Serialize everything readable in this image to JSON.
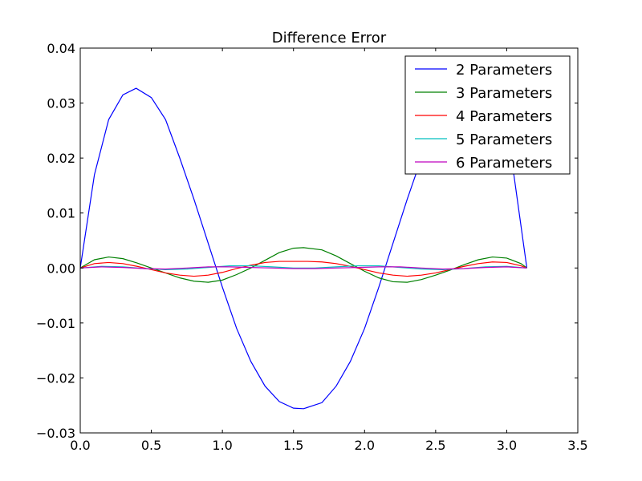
{
  "chart_data": {
    "type": "line",
    "title": "Difference Error",
    "xlabel": "",
    "ylabel": "",
    "xlim": [
      0.0,
      3.5
    ],
    "ylim": [
      -0.03,
      0.04
    ],
    "xticks": [
      "0.0",
      "0.5",
      "1.0",
      "1.5",
      "2.0",
      "2.5",
      "3.0",
      "3.5"
    ],
    "yticks": [
      "0.04",
      "0.03",
      "0.02",
      "0.01",
      "0.00",
      "−0.01",
      "−0.02",
      "−0.03"
    ],
    "legend_position": "upper-right",
    "grid": false,
    "series": [
      {
        "name": "2 Parameters",
        "color": "#0000ff",
        "x": [
          0.0,
          0.1,
          0.2,
          0.3,
          0.393,
          0.5,
          0.6,
          0.7,
          0.8,
          0.9,
          1.0,
          1.1,
          1.2,
          1.3,
          1.4,
          1.5,
          1.571,
          1.7,
          1.8,
          1.9,
          2.0,
          2.1,
          2.2,
          2.3,
          2.4,
          2.5,
          2.6,
          2.7,
          2.749,
          2.85,
          2.95,
          3.05,
          3.1416
        ],
        "y": [
          0.0,
          0.017,
          0.027,
          0.0315,
          0.0327,
          0.031,
          0.027,
          0.02,
          0.0125,
          0.0045,
          -0.0035,
          -0.011,
          -0.017,
          -0.0215,
          -0.0243,
          -0.0255,
          -0.0256,
          -0.0245,
          -0.0215,
          -0.017,
          -0.011,
          -0.0035,
          0.0045,
          0.0125,
          0.02,
          0.027,
          0.031,
          0.0327,
          0.0327,
          0.0315,
          0.027,
          0.017,
          0.0
        ]
      },
      {
        "name": "3 Parameters",
        "color": "#008000",
        "x": [
          0.0,
          0.1,
          0.2,
          0.3,
          0.4,
          0.5,
          0.6,
          0.7,
          0.8,
          0.9,
          1.0,
          1.1,
          1.2,
          1.3,
          1.4,
          1.5,
          1.571,
          1.7,
          1.8,
          1.9,
          2.0,
          2.1,
          2.2,
          2.3,
          2.4,
          2.5,
          2.6,
          2.7,
          2.8,
          2.9,
          3.0,
          3.1,
          3.1416
        ],
        "y": [
          0.0,
          0.0015,
          0.002,
          0.0017,
          0.0009,
          0.0,
          -0.0009,
          -0.0018,
          -0.0024,
          -0.0026,
          -0.0022,
          -0.0012,
          0.0,
          0.0014,
          0.0028,
          0.0036,
          0.0037,
          0.0033,
          0.0022,
          0.0008,
          -0.0006,
          -0.0018,
          -0.0025,
          -0.0026,
          -0.0021,
          -0.0013,
          -0.0004,
          0.0006,
          0.0015,
          0.002,
          0.0018,
          0.0008,
          0.0
        ]
      },
      {
        "name": "4 Parameters",
        "color": "#ff0000",
        "x": [
          0.0,
          0.1,
          0.2,
          0.3,
          0.4,
          0.5,
          0.6,
          0.7,
          0.8,
          0.9,
          1.0,
          1.1,
          1.2,
          1.3,
          1.4,
          1.5,
          1.6,
          1.7,
          1.8,
          1.9,
          2.0,
          2.1,
          2.2,
          2.3,
          2.4,
          2.5,
          2.6,
          2.7,
          2.8,
          2.9,
          3.0,
          3.1,
          3.1416
        ],
        "y": [
          0.0,
          0.0008,
          0.001,
          0.0008,
          0.0003,
          -0.0003,
          -0.0009,
          -0.0013,
          -0.0015,
          -0.0013,
          -0.0008,
          -0.0001,
          0.0005,
          0.001,
          0.0012,
          0.0012,
          0.0012,
          0.0011,
          0.0008,
          0.0003,
          -0.0003,
          -0.0009,
          -0.0013,
          -0.0015,
          -0.0013,
          -0.0009,
          -0.0003,
          0.0003,
          0.0008,
          0.0011,
          0.001,
          0.0004,
          0.0
        ]
      },
      {
        "name": "5 Parameters",
        "color": "#00bfbf",
        "x": [
          0.0,
          0.15,
          0.3,
          0.45,
          0.6,
          0.75,
          0.9,
          1.05,
          1.2,
          1.35,
          1.5,
          1.65,
          1.8,
          1.95,
          2.1,
          2.25,
          2.4,
          2.55,
          2.7,
          2.85,
          3.0,
          3.1416
        ],
        "y": [
          0.0,
          0.0003,
          0.0002,
          -0.0001,
          -0.0003,
          -0.0002,
          0.0001,
          0.0004,
          0.0004,
          0.0002,
          0.0,
          0.0,
          0.0002,
          0.0004,
          0.0004,
          0.0001,
          -0.0002,
          -0.0003,
          -0.0001,
          0.0002,
          0.0003,
          0.0
        ]
      },
      {
        "name": "6 Parameters",
        "color": "#bf00bf",
        "x": [
          0.0,
          0.15,
          0.3,
          0.45,
          0.6,
          0.75,
          0.9,
          1.05,
          1.2,
          1.35,
          1.5,
          1.65,
          1.8,
          1.95,
          2.1,
          2.25,
          2.4,
          2.55,
          2.7,
          2.85,
          3.0,
          3.1416
        ],
        "y": [
          0.0,
          0.0002,
          0.0001,
          -0.0001,
          -0.0002,
          0.0,
          0.0002,
          0.0002,
          0.0001,
          0.0,
          -0.0001,
          -0.0001,
          0.0,
          0.0001,
          0.0002,
          0.0002,
          0.0,
          -0.0002,
          -0.0001,
          0.0001,
          0.0002,
          0.0
        ]
      }
    ]
  }
}
